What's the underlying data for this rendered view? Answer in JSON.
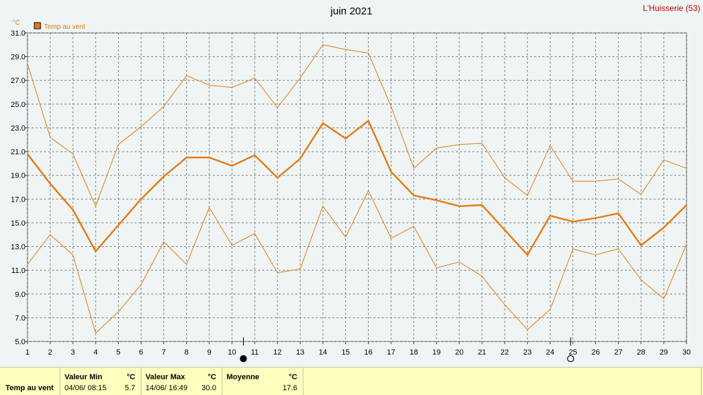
{
  "header": {
    "title": "juin 2021",
    "station": "L'Huisserie (53)"
  },
  "legend": {
    "label": "Temp au vent",
    "color": "#e87810"
  },
  "chart_data": {
    "type": "line",
    "title": "juin 2021",
    "ylabel": "°C",
    "ylim": [
      5.0,
      31.0
    ],
    "y_ticks": [
      "5.0",
      "7.0",
      "9.0",
      "11.0",
      "13.0",
      "15.0",
      "17.0",
      "19.0",
      "21.0",
      "23.0",
      "25.0",
      "27.0",
      "29.0",
      "31.0"
    ],
    "x_ticks": [
      "1",
      "2",
      "3",
      "4",
      "5",
      "6",
      "7",
      "8",
      "9",
      "10",
      "11",
      "12",
      "13",
      "14",
      "15",
      "16",
      "17",
      "18",
      "19",
      "20",
      "21",
      "22",
      "23",
      "24",
      "25",
      "26",
      "27",
      "28",
      "29",
      "30"
    ],
    "grid": true,
    "legend_position": "top-left",
    "moon_phases": [
      {
        "day": 10.5,
        "phase": "new"
      },
      {
        "day": 24.9,
        "phase": "full"
      }
    ],
    "series": [
      {
        "name": "Temp au vent",
        "role": "mean",
        "color": "#e87810",
        "values": [
          20.8,
          18.3,
          16.1,
          12.6,
          14.8,
          17.0,
          18.9,
          20.5,
          20.5,
          19.8,
          20.7,
          18.8,
          20.4,
          23.4,
          22.1,
          23.6,
          19.3,
          17.3,
          16.9,
          16.4,
          16.5,
          14.4,
          12.3,
          15.6,
          15.1,
          15.4,
          15.8,
          13.1,
          14.6,
          16.5
        ]
      },
      {
        "role": "max",
        "color": "#e87810",
        "values": [
          28.4,
          22.2,
          20.8,
          16.4,
          21.6,
          23.1,
          24.8,
          27.4,
          26.6,
          26.4,
          27.2,
          24.7,
          27.2,
          30.0,
          29.6,
          29.3,
          24.8,
          19.6,
          21.3,
          21.6,
          21.7,
          18.8,
          17.3,
          21.5,
          18.5,
          18.5,
          18.7,
          17.4,
          20.3,
          19.6
        ]
      },
      {
        "role": "min",
        "color": "#e87810",
        "values": [
          11.5,
          14.0,
          12.3,
          5.7,
          7.5,
          9.8,
          13.4,
          11.5,
          16.3,
          13.1,
          14.1,
          10.8,
          11.1,
          16.4,
          13.8,
          17.7,
          13.7,
          14.7,
          11.2,
          11.7,
          10.5,
          8.1,
          6.0,
          7.7,
          12.8,
          12.3,
          12.8,
          10.2,
          8.6,
          13.2
        ]
      }
    ]
  },
  "stats": {
    "row_label": "Temp au vent",
    "min": {
      "label": "Valeur Min",
      "unit": "°C",
      "date": "04/06/ 08:15",
      "value": "5.7"
    },
    "max": {
      "label": "Valeur Max",
      "unit": "°C",
      "date": "14/06/ 16:49",
      "value": "30.0"
    },
    "avg": {
      "label": "Moyenne",
      "unit": "°C",
      "value": "17.6"
    }
  }
}
